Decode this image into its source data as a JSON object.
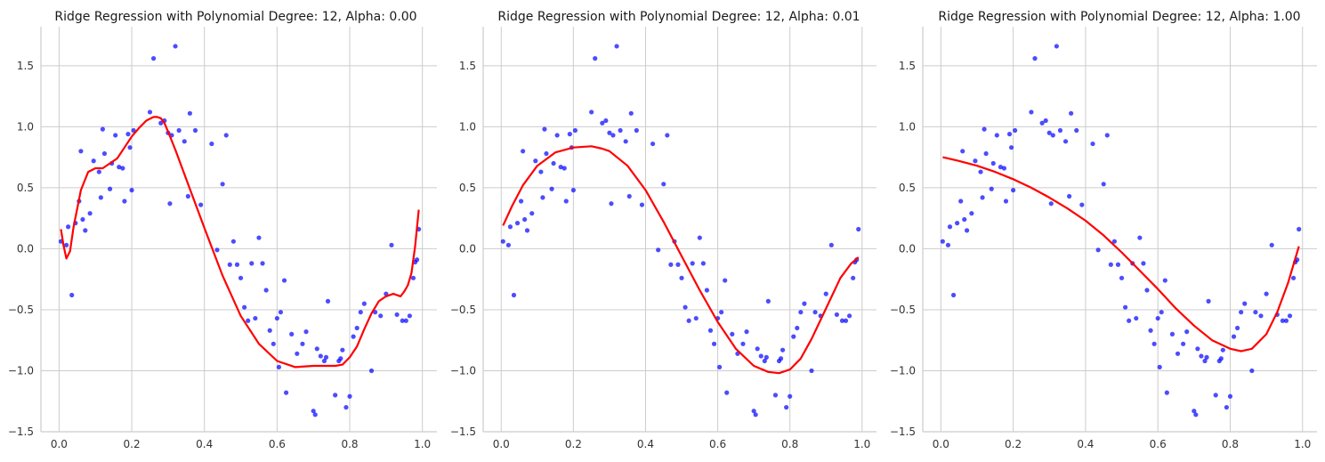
{
  "colors": {
    "background": "#ffffff",
    "grid": "#cccccc",
    "axis": "#cccccc",
    "points": "#0000ff",
    "fit_line": "#ff0000",
    "text": "#1a1a1a"
  },
  "chart_data": [
    {
      "type": "scatter",
      "title": "Ridge Regression with Polynomial Degree: 12, Alpha: 0.00",
      "xlabel": "",
      "ylabel": "",
      "xlim": [
        -0.05,
        1.04
      ],
      "ylim": [
        -1.5,
        1.82
      ],
      "xticks": [
        0.0,
        0.2,
        0.4,
        0.6,
        0.8,
        1.0
      ],
      "xtick_labels": [
        "0.0",
        "0.2",
        "0.4",
        "0.6",
        "0.8",
        "1.0"
      ],
      "yticks": [
        -1.5,
        -1.0,
        -0.5,
        0.0,
        0.5,
        1.0,
        1.5
      ],
      "ytick_labels": [
        "−1.5",
        "−1.0",
        "−0.5",
        "0.0",
        "0.5",
        "1.0",
        "1.5"
      ],
      "grid": true,
      "series": [
        {
          "kind": "points",
          "x": [
            0.005,
            0.02,
            0.025,
            0.035,
            0.045,
            0.055,
            0.06,
            0.065,
            0.072,
            0.085,
            0.095,
            0.11,
            0.115,
            0.12,
            0.125,
            0.14,
            0.145,
            0.155,
            0.165,
            0.175,
            0.18,
            0.19,
            0.195,
            0.2,
            0.205,
            0.25,
            0.26,
            0.28,
            0.29,
            0.3,
            0.305,
            0.31,
            0.32,
            0.33,
            0.345,
            0.355,
            0.36,
            0.375,
            0.39,
            0.42,
            0.435,
            0.45,
            0.46,
            0.47,
            0.48,
            0.49,
            0.5,
            0.51,
            0.52,
            0.53,
            0.54,
            0.55,
            0.56,
            0.57,
            0.58,
            0.59,
            0.6,
            0.605,
            0.61,
            0.62,
            0.625,
            0.64,
            0.655,
            0.67,
            0.68,
            0.7,
            0.705,
            0.71,
            0.72,
            0.73,
            0.735,
            0.74,
            0.76,
            0.77,
            0.775,
            0.78,
            0.79,
            0.8,
            0.81,
            0.82,
            0.83,
            0.84,
            0.86,
            0.87,
            0.885,
            0.9,
            0.915,
            0.93,
            0.945,
            0.955,
            0.965,
            0.975,
            0.98,
            0.985,
            0.99
          ],
          "y": [
            0.06,
            0.03,
            0.18,
            -0.38,
            0.21,
            0.39,
            0.8,
            0.24,
            0.15,
            0.29,
            0.72,
            0.63,
            0.42,
            0.98,
            0.78,
            0.49,
            0.7,
            0.93,
            0.67,
            0.66,
            0.39,
            0.94,
            0.83,
            0.48,
            0.97,
            1.12,
            1.56,
            1.03,
            1.05,
            0.95,
            0.37,
            0.93,
            1.66,
            0.97,
            0.88,
            0.43,
            1.11,
            0.97,
            0.36,
            0.86,
            -0.01,
            0.53,
            0.93,
            -0.13,
            0.06,
            -0.13,
            -0.24,
            -0.48,
            -0.59,
            -0.12,
            -0.57,
            0.09,
            -0.12,
            -0.34,
            -0.67,
            -0.78,
            -0.57,
            -0.97,
            -0.52,
            -0.26,
            -1.18,
            -0.7,
            -0.86,
            -0.78,
            -0.68,
            -1.33,
            -1.36,
            -0.82,
            -0.88,
            -0.92,
            -0.89,
            -0.43,
            -1.2,
            -0.92,
            -0.9,
            -0.83,
            -1.3,
            -1.21,
            -0.72,
            -0.65,
            -0.52,
            -0.45,
            -1.0,
            -0.52,
            -0.55,
            -0.37,
            0.03,
            -0.54,
            -0.59,
            -0.59,
            -0.55,
            -0.24,
            -0.11,
            -0.09,
            0.16
          ]
        },
        {
          "kind": "line",
          "x": [
            0.005,
            0.012,
            0.02,
            0.03,
            0.04,
            0.06,
            0.08,
            0.1,
            0.12,
            0.14,
            0.16,
            0.18,
            0.2,
            0.22,
            0.24,
            0.26,
            0.27,
            0.28,
            0.29,
            0.3,
            0.32,
            0.35,
            0.4,
            0.45,
            0.5,
            0.55,
            0.6,
            0.65,
            0.7,
            0.72,
            0.74,
            0.76,
            0.78,
            0.8,
            0.82,
            0.84,
            0.86,
            0.88,
            0.9,
            0.92,
            0.94,
            0.95,
            0.96,
            0.97,
            0.98,
            0.99
          ],
          "y": [
            0.16,
            0.03,
            -0.08,
            -0.02,
            0.18,
            0.48,
            0.63,
            0.66,
            0.66,
            0.7,
            0.74,
            0.83,
            0.92,
            0.99,
            1.05,
            1.08,
            1.08,
            1.07,
            1.03,
            0.96,
            0.81,
            0.57,
            0.17,
            -0.22,
            -0.55,
            -0.78,
            -0.92,
            -0.97,
            -0.96,
            -0.96,
            -0.96,
            -0.96,
            -0.95,
            -0.89,
            -0.8,
            -0.66,
            -0.53,
            -0.43,
            -0.39,
            -0.37,
            -0.39,
            -0.35,
            -0.3,
            -0.2,
            0.02,
            0.32
          ]
        }
      ]
    },
    {
      "type": "scatter",
      "title": "Ridge Regression with Polynomial Degree: 12, Alpha: 0.01",
      "xlabel": "",
      "ylabel": "",
      "xlim": [
        -0.05,
        1.04
      ],
      "ylim": [
        -1.5,
        1.82
      ],
      "xticks": [
        0.0,
        0.2,
        0.4,
        0.6,
        0.8,
        1.0
      ],
      "xtick_labels": [
        "0.0",
        "0.2",
        "0.4",
        "0.6",
        "0.8",
        "1.0"
      ],
      "yticks": [
        -1.5,
        -1.0,
        -0.5,
        0.0,
        0.5,
        1.0,
        1.5
      ],
      "ytick_labels": [
        "−1.5",
        "−1.0",
        "−0.5",
        "0.0",
        "0.5",
        "1.0",
        "1.5"
      ],
      "grid": true,
      "series": [
        {
          "kind": "points",
          "x": [
            0.005,
            0.02,
            0.025,
            0.035,
            0.045,
            0.055,
            0.06,
            0.065,
            0.072,
            0.085,
            0.095,
            0.11,
            0.115,
            0.12,
            0.125,
            0.14,
            0.145,
            0.155,
            0.165,
            0.175,
            0.18,
            0.19,
            0.195,
            0.2,
            0.205,
            0.25,
            0.26,
            0.28,
            0.29,
            0.3,
            0.305,
            0.31,
            0.32,
            0.33,
            0.345,
            0.355,
            0.36,
            0.375,
            0.39,
            0.42,
            0.435,
            0.45,
            0.46,
            0.47,
            0.48,
            0.49,
            0.5,
            0.51,
            0.52,
            0.53,
            0.54,
            0.55,
            0.56,
            0.57,
            0.58,
            0.59,
            0.6,
            0.605,
            0.61,
            0.62,
            0.625,
            0.64,
            0.655,
            0.67,
            0.68,
            0.7,
            0.705,
            0.71,
            0.72,
            0.73,
            0.735,
            0.74,
            0.76,
            0.77,
            0.775,
            0.78,
            0.79,
            0.8,
            0.81,
            0.82,
            0.83,
            0.84,
            0.86,
            0.87,
            0.885,
            0.9,
            0.915,
            0.93,
            0.945,
            0.955,
            0.965,
            0.975,
            0.98,
            0.985,
            0.99
          ],
          "y": [
            0.06,
            0.03,
            0.18,
            -0.38,
            0.21,
            0.39,
            0.8,
            0.24,
            0.15,
            0.29,
            0.72,
            0.63,
            0.42,
            0.98,
            0.78,
            0.49,
            0.7,
            0.93,
            0.67,
            0.66,
            0.39,
            0.94,
            0.83,
            0.48,
            0.97,
            1.12,
            1.56,
            1.03,
            1.05,
            0.95,
            0.37,
            0.93,
            1.66,
            0.97,
            0.88,
            0.43,
            1.11,
            0.97,
            0.36,
            0.86,
            -0.01,
            0.53,
            0.93,
            -0.13,
            0.06,
            -0.13,
            -0.24,
            -0.48,
            -0.59,
            -0.12,
            -0.57,
            0.09,
            -0.12,
            -0.34,
            -0.67,
            -0.78,
            -0.57,
            -0.97,
            -0.52,
            -0.26,
            -1.18,
            -0.7,
            -0.86,
            -0.78,
            -0.68,
            -1.33,
            -1.36,
            -0.82,
            -0.88,
            -0.92,
            -0.89,
            -0.43,
            -1.2,
            -0.92,
            -0.9,
            -0.83,
            -1.3,
            -1.21,
            -0.72,
            -0.65,
            -0.52,
            -0.45,
            -1.0,
            -0.52,
            -0.55,
            -0.37,
            0.03,
            -0.54,
            -0.59,
            -0.59,
            -0.55,
            -0.24,
            -0.11,
            -0.09,
            0.16
          ]
        },
        {
          "kind": "line",
          "x": [
            0.005,
            0.03,
            0.06,
            0.1,
            0.15,
            0.2,
            0.25,
            0.28,
            0.3,
            0.35,
            0.4,
            0.45,
            0.5,
            0.55,
            0.6,
            0.65,
            0.7,
            0.74,
            0.77,
            0.8,
            0.83,
            0.86,
            0.9,
            0.94,
            0.97,
            0.99
          ],
          "y": [
            0.19,
            0.35,
            0.52,
            0.68,
            0.79,
            0.83,
            0.84,
            0.82,
            0.8,
            0.68,
            0.48,
            0.22,
            -0.06,
            -0.34,
            -0.6,
            -0.82,
            -0.96,
            -1.01,
            -1.02,
            -0.99,
            -0.9,
            -0.74,
            -0.49,
            -0.24,
            -0.12,
            -0.07
          ]
        }
      ]
    },
    {
      "type": "scatter",
      "title": "Ridge Regression with Polynomial Degree: 12, Alpha: 1.00",
      "xlabel": "",
      "ylabel": "",
      "xlim": [
        -0.05,
        1.04
      ],
      "ylim": [
        -1.5,
        1.82
      ],
      "xticks": [
        0.0,
        0.2,
        0.4,
        0.6,
        0.8,
        1.0
      ],
      "xtick_labels": [
        "0.0",
        "0.2",
        "0.4",
        "0.6",
        "0.8",
        "1.0"
      ],
      "yticks": [
        -1.5,
        -1.0,
        -0.5,
        0.0,
        0.5,
        1.0,
        1.5
      ],
      "ytick_labels": [
        "−1.5",
        "−1.0",
        "−0.5",
        "0.0",
        "0.5",
        "1.0",
        "1.5"
      ],
      "grid": true,
      "series": [
        {
          "kind": "points",
          "x": [
            0.005,
            0.02,
            0.025,
            0.035,
            0.045,
            0.055,
            0.06,
            0.065,
            0.072,
            0.085,
            0.095,
            0.11,
            0.115,
            0.12,
            0.125,
            0.14,
            0.145,
            0.155,
            0.165,
            0.175,
            0.18,
            0.19,
            0.195,
            0.2,
            0.205,
            0.25,
            0.26,
            0.28,
            0.29,
            0.3,
            0.305,
            0.31,
            0.32,
            0.33,
            0.345,
            0.355,
            0.36,
            0.375,
            0.39,
            0.42,
            0.435,
            0.45,
            0.46,
            0.47,
            0.48,
            0.49,
            0.5,
            0.51,
            0.52,
            0.53,
            0.54,
            0.55,
            0.56,
            0.57,
            0.58,
            0.59,
            0.6,
            0.605,
            0.61,
            0.62,
            0.625,
            0.64,
            0.655,
            0.67,
            0.68,
            0.7,
            0.705,
            0.71,
            0.72,
            0.73,
            0.735,
            0.74,
            0.76,
            0.77,
            0.775,
            0.78,
            0.79,
            0.8,
            0.81,
            0.82,
            0.83,
            0.84,
            0.86,
            0.87,
            0.885,
            0.9,
            0.915,
            0.93,
            0.945,
            0.955,
            0.965,
            0.975,
            0.98,
            0.985,
            0.99
          ],
          "y": [
            0.06,
            0.03,
            0.18,
            -0.38,
            0.21,
            0.39,
            0.8,
            0.24,
            0.15,
            0.29,
            0.72,
            0.63,
            0.42,
            0.98,
            0.78,
            0.49,
            0.7,
            0.93,
            0.67,
            0.66,
            0.39,
            0.94,
            0.83,
            0.48,
            0.97,
            1.12,
            1.56,
            1.03,
            1.05,
            0.95,
            0.37,
            0.93,
            1.66,
            0.97,
            0.88,
            0.43,
            1.11,
            0.97,
            0.36,
            0.86,
            -0.01,
            0.53,
            0.93,
            -0.13,
            0.06,
            -0.13,
            -0.24,
            -0.48,
            -0.59,
            -0.12,
            -0.57,
            0.09,
            -0.12,
            -0.34,
            -0.67,
            -0.78,
            -0.57,
            -0.97,
            -0.52,
            -0.26,
            -1.18,
            -0.7,
            -0.86,
            -0.78,
            -0.68,
            -1.33,
            -1.36,
            -0.82,
            -0.88,
            -0.92,
            -0.89,
            -0.43,
            -1.2,
            -0.92,
            -0.9,
            -0.83,
            -1.3,
            -1.21,
            -0.72,
            -0.65,
            -0.52,
            -0.45,
            -1.0,
            -0.52,
            -0.55,
            -0.37,
            0.03,
            -0.54,
            -0.59,
            -0.59,
            -0.55,
            -0.24,
            -0.11,
            -0.09,
            0.16
          ]
        },
        {
          "kind": "line",
          "x": [
            0.005,
            0.05,
            0.1,
            0.15,
            0.2,
            0.25,
            0.3,
            0.35,
            0.4,
            0.45,
            0.5,
            0.55,
            0.6,
            0.65,
            0.7,
            0.75,
            0.8,
            0.83,
            0.86,
            0.9,
            0.93,
            0.96,
            0.99
          ],
          "y": [
            0.75,
            0.72,
            0.68,
            0.63,
            0.57,
            0.5,
            0.42,
            0.33,
            0.23,
            0.11,
            -0.03,
            -0.18,
            -0.33,
            -0.49,
            -0.63,
            -0.75,
            -0.82,
            -0.84,
            -0.82,
            -0.7,
            -0.52,
            -0.28,
            0.02
          ]
        }
      ]
    }
  ]
}
